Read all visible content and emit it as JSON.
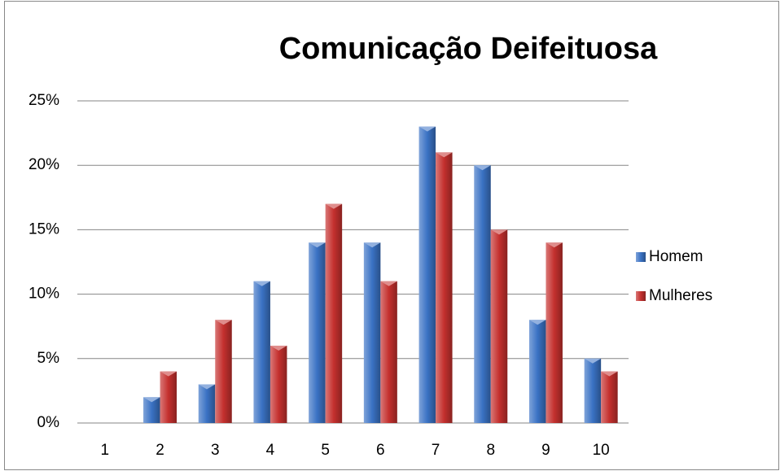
{
  "chart_data": {
    "type": "bar",
    "title": "Comunicação Deifeituosa",
    "categories": [
      "1",
      "2",
      "3",
      "4",
      "5",
      "6",
      "7",
      "8",
      "9",
      "10"
    ],
    "series": [
      {
        "name": "Homem",
        "color": "#3a72c4",
        "values": [
          0,
          2,
          3,
          11,
          14,
          14,
          23,
          20,
          8,
          5
        ]
      },
      {
        "name": "Mulheres",
        "color": "#c4302e",
        "values": [
          0,
          4,
          8,
          6,
          17,
          11,
          21,
          15,
          14,
          4
        ]
      }
    ],
    "ylim": [
      0,
      25
    ],
    "yticks": [
      {
        "value": 0,
        "label": "0%"
      },
      {
        "value": 5,
        "label": "5%"
      },
      {
        "value": 10,
        "label": "10%"
      },
      {
        "value": 15,
        "label": "15%"
      },
      {
        "value": 20,
        "label": "20%"
      },
      {
        "value": 25,
        "label": "25%"
      }
    ],
    "grid": true,
    "legend": "right"
  }
}
